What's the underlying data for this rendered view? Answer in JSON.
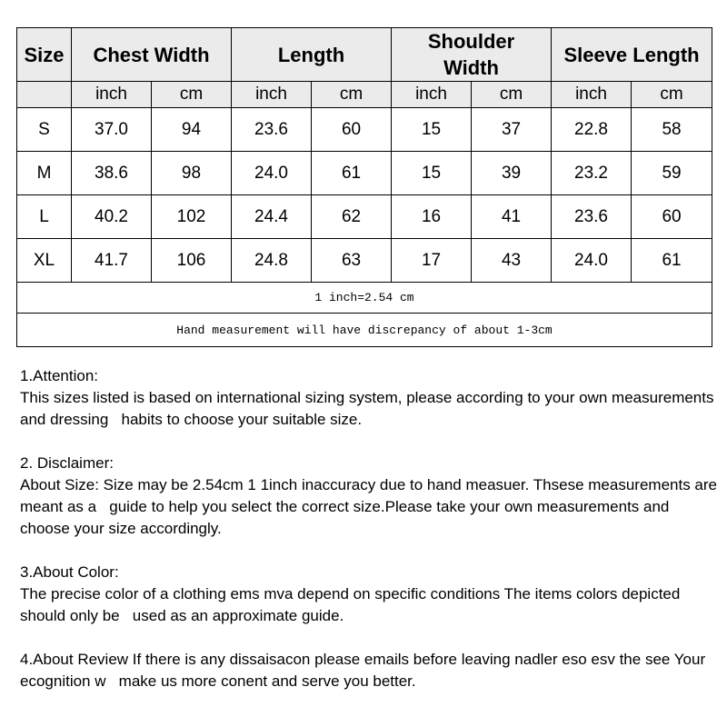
{
  "table": {
    "headers": [
      "Size",
      "Chest Width",
      "Length",
      "Shoulder Width",
      "Sleeve Length"
    ],
    "units": [
      "inch",
      "cm",
      "inch",
      "cm",
      "inch",
      "cm",
      "inch",
      "cm"
    ],
    "rows": [
      [
        "S",
        "37.0",
        "94",
        "23.6",
        "60",
        "15",
        "37",
        "22.8",
        "58"
      ],
      [
        "M",
        "38.6",
        "98",
        "24.0",
        "61",
        "15",
        "39",
        "23.2",
        "59"
      ],
      [
        "L",
        "40.2",
        "102",
        "24.4",
        "62",
        "16",
        "41",
        "23.6",
        "60"
      ],
      [
        "XL",
        "41.7",
        "106",
        "24.8",
        "63",
        "17",
        "43",
        "24.0",
        "61"
      ]
    ],
    "conversion_note": "1 inch=2.54 cm",
    "measurement_note": "Hand measurement will have discrepancy of about 1-3cm"
  },
  "notes": [
    {
      "title": "1.Attention:",
      "body": "This sizes listed is based on international sizing system, please according to your own measurements and dressing   habits to choose your suitable size."
    },
    {
      "title": "2. Disclaimer:",
      "body": "About Size: Size may be 2.54cm 1 1inch inaccuracy due to hand measuer. Thsese measurements are meant as a   guide to help you select the correct size.Please take your own measurements and choose your size accordingly."
    },
    {
      "title": "3.About Color:",
      "body": "The precise color of a clothing ems mva depend on specific conditions The items colors depicted should only be   used as an approximate guide."
    },
    {
      "title": "",
      "body": "4.About Review If there is any dissaisacon please emails before leaving nadler eso esv the see Your ecognition w   make us more conent and serve you better."
    }
  ],
  "colors": {
    "header_bg": "#ebebeb",
    "border": "#000000"
  }
}
